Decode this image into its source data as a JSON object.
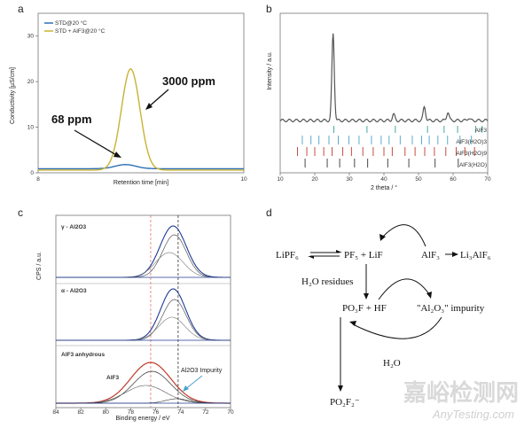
{
  "panels": {
    "a": "a",
    "b": "b",
    "c": "c",
    "d": "d"
  },
  "chart_data": [
    {
      "type": "line",
      "panel": "a",
      "xlabel": "Retention time [min]",
      "ylabel": "Conductivity [µS/cm]",
      "xlim": [
        8,
        10
      ],
      "ylim": [
        0,
        35
      ],
      "xticks": [
        "8",
        "10"
      ],
      "yticks": [
        "0",
        "10",
        "20",
        "30"
      ],
      "series": [
        {
          "name": "STD@20 °C",
          "color": "#2e6fb5",
          "peak_x": 8.85,
          "peak_y": 1.8,
          "width": 0.1,
          "baseline": 0.9
        },
        {
          "name": "STD + AlF3@20 °C",
          "color": "#c9b233",
          "peak_x": 8.9,
          "peak_y": 22.8,
          "width": 0.09,
          "baseline": 0.6
        }
      ],
      "annotations": [
        {
          "text": "3000 ppm"
        },
        {
          "text": "68 ppm"
        }
      ]
    },
    {
      "type": "line",
      "panel": "b",
      "xlabel": "2 theta / °",
      "ylabel": "Intensity / a.u.",
      "xlim": [
        10,
        70
      ],
      "xticks": [
        "10",
        "20",
        "30",
        "40",
        "50",
        "60",
        "70"
      ],
      "peaks": [
        {
          "x": 25.3,
          "h": 100
        },
        {
          "x": 42.8,
          "h": 7
        },
        {
          "x": 51.7,
          "h": 16
        },
        {
          "x": 58.5,
          "h": 10
        },
        {
          "x": 64.5,
          "h": 3
        }
      ],
      "reference_labels": [
        "AlF3",
        "AlF3(H2O)3",
        "AlF3(H2O)9",
        "AlF3(H2O)"
      ],
      "reference_colors": [
        "#2aa198",
        "#4aa3c7",
        "#c0392b",
        "#333333"
      ]
    },
    {
      "type": "line",
      "panel": "c",
      "xlabel": "Binding energy / eV",
      "ylabel": "CPS / a.u.",
      "xlim": [
        84,
        70
      ],
      "xticks": [
        "84",
        "82",
        "80",
        "78",
        "76",
        "74",
        "72",
        "70"
      ],
      "subplots": [
        {
          "label": "γ - Al2O3",
          "center": 74.6,
          "width": 1.0
        },
        {
          "label": "α - Al2O3",
          "center": 74.6,
          "width": 1.0
        },
        {
          "label": "AlF3 anhydrous",
          "center": 76.4,
          "width": 1.6
        }
      ],
      "annotations": [
        {
          "text": "AlF3",
          "color": "#c0392b"
        },
        {
          "text": "Al2O3 Impurity"
        }
      ]
    }
  ],
  "scheme": {
    "lipf6": "LiPF₆",
    "pf5_lif": "PF₅ + LiF",
    "alf3": "AlF₃",
    "li3alf6": "Li₃AlF₆",
    "h2o_residues": "H₂O residues",
    "pof3_hf": "PO₃F + HF",
    "al2o3": "\"Al₂O₃\" impurity",
    "h2o": "H₂O",
    "po2f2": "PO₂F₂⁻"
  },
  "watermark": {
    "cn": "嘉峪检测网",
    "en": "AnyTesting.com"
  }
}
